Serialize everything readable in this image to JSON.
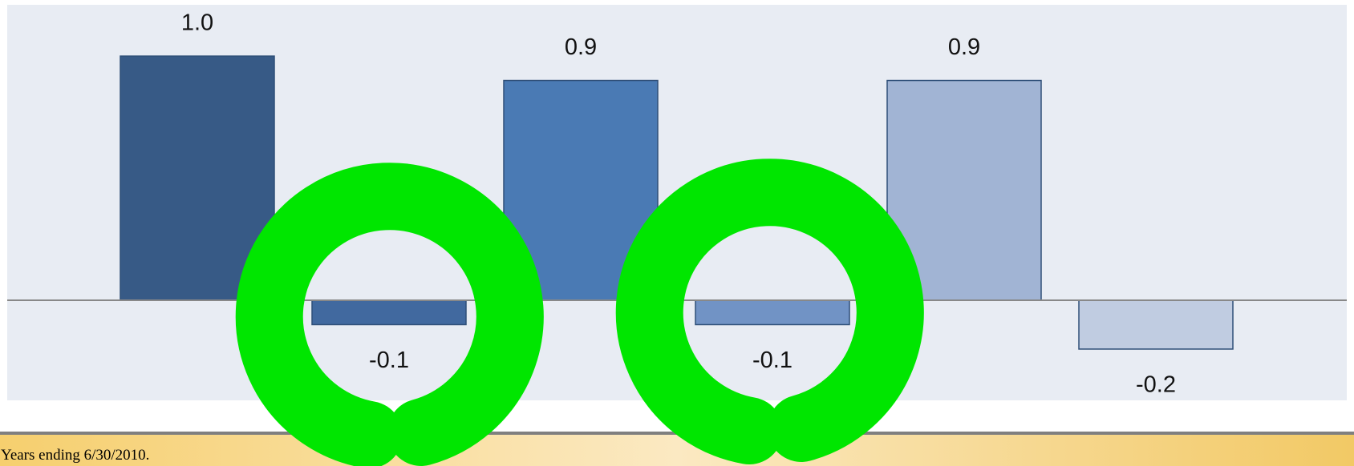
{
  "chart_data": {
    "type": "bar",
    "categories": [
      null,
      null,
      null,
      null,
      null,
      null
    ],
    "values": [
      1.0,
      -0.1,
      0.9,
      -0.1,
      0.9,
      -0.2
    ],
    "value_labels": [
      "1.0",
      "-0.1",
      "0.9",
      "-0.1",
      "0.9",
      "-0.2"
    ],
    "colors": [
      "#375a86",
      "#41699f",
      "#4a7ab4",
      "#7193c5",
      "#a1b4d4",
      "#c0cce1"
    ],
    "ylim": [
      -0.41,
      1.21
    ]
  },
  "footer": {
    "note": "Years ending 6/30/2010."
  }
}
